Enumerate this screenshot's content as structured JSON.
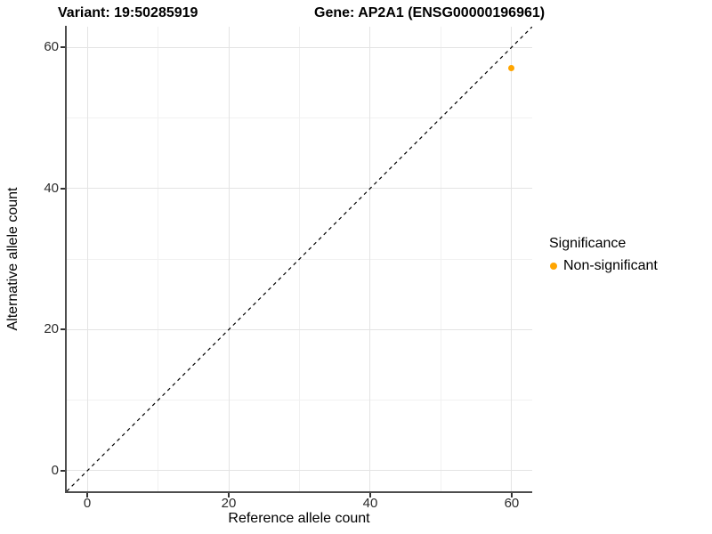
{
  "header": {
    "variant_title": "Variant: 19:50285919",
    "gene_title": "Gene: AP2A1 (ENSG00000196961)"
  },
  "axes": {
    "x": {
      "label": "Reference allele count",
      "ticks": [
        "0",
        "20",
        "40",
        "60"
      ]
    },
    "y": {
      "label": "Alternative allele count",
      "ticks": [
        "0",
        "20",
        "40",
        "60"
      ]
    }
  },
  "legend": {
    "title": "Significance",
    "items": [
      {
        "label": "Non-significant",
        "color": "#FFA500"
      }
    ]
  },
  "chart_data": {
    "type": "scatter",
    "title": "Variant: 19:50285919    Gene: AP2A1 (ENSG00000196961)",
    "xlabel": "Reference allele count",
    "ylabel": "Alternative allele count",
    "xlim": [
      -2.9,
      62.9
    ],
    "ylim": [
      -2.9,
      62.9
    ],
    "x_ticks": [
      0,
      20,
      40,
      60
    ],
    "y_ticks": [
      0,
      20,
      40,
      60
    ],
    "x_minor_ticks": [
      10,
      30,
      50
    ],
    "y_minor_ticks": [
      10,
      30,
      50
    ],
    "grid": true,
    "legend_position": "right",
    "series": [
      {
        "name": "Non-significant",
        "color": "#FFA500",
        "points": [
          {
            "x": 60,
            "y": 57
          }
        ]
      }
    ],
    "reference_line": {
      "type": "identity",
      "equation": "y = x",
      "style": "dashed",
      "color": "#000000"
    }
  },
  "colors": {
    "background": "#ffffff",
    "point": "#FFA500",
    "grid_major": "#e4e4e4",
    "grid_minor": "#f1f1f1",
    "axis_line": "#4d4d4d",
    "text": "#000000",
    "tick_text": "#2b2b2b"
  }
}
